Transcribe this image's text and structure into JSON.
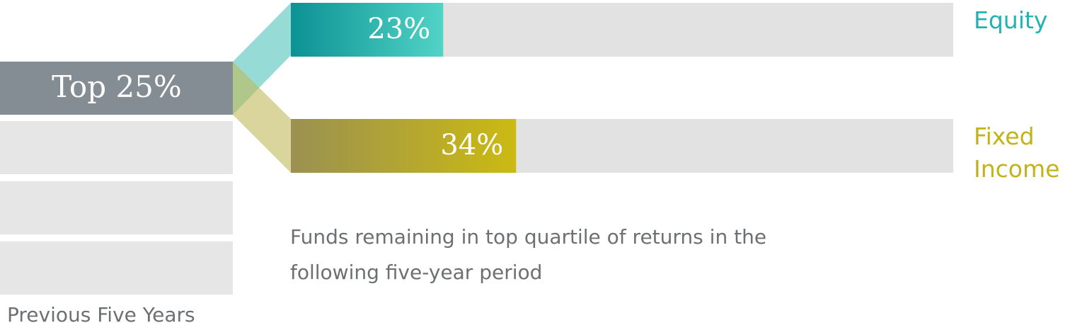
{
  "chart_data": {
    "type": "bar",
    "left_label": "Top 25%",
    "left_caption": "Previous Five Years",
    "categories": [
      "Equity",
      "Fixed Income"
    ],
    "values": [
      23,
      34
    ],
    "value_labels": [
      "23%",
      "34%"
    ],
    "colors": [
      "#1fb3b3",
      "#c2b31a"
    ],
    "xlim": [
      0,
      100
    ],
    "annotation": "Funds remaining in top quartile of returns in the following five-year period"
  }
}
